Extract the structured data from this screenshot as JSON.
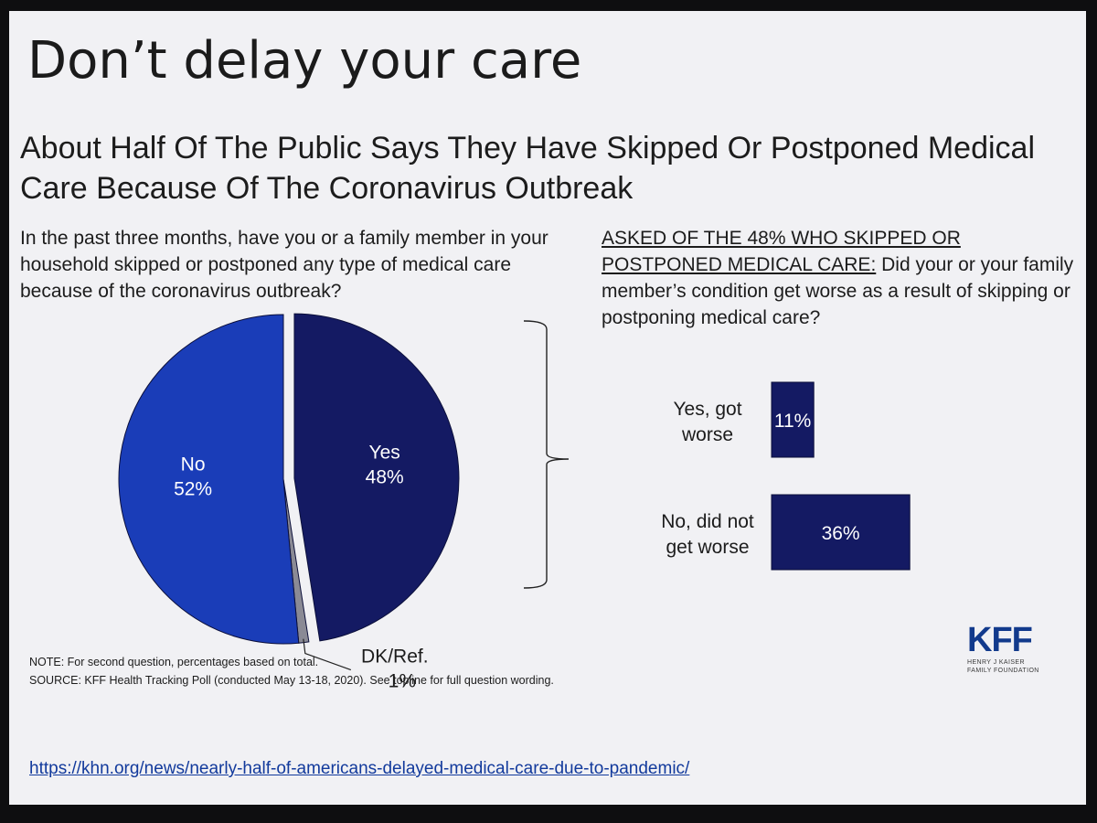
{
  "slide": {
    "title": "Don’t delay your care",
    "headline": "About Half Of The Public Says They Have Skipped Or Postponed Medical Care Because Of The Coronavirus Outbreak",
    "question_left": "In the past three months, have you or a family member in your household skipped or postponed any type of medical care because of the coronavirus outbreak?",
    "question_right_lead": "ASKED OF THE 48% WHO SKIPPED OR POSTPONED MEDICAL CARE:",
    "question_right_rest": " Did your or your family member’s condition get worse as a result of skipping or postponing medical care?",
    "note": "NOTE: For second question, percentages based on total.",
    "source": "SOURCE: KFF Health Tracking Poll (conducted May 13-18, 2020). See topline for full question wording.",
    "logo": {
      "letters": "KFF",
      "line1": "HENRY J KAISER",
      "line2": "FAMILY FOUNDATION"
    },
    "link": "https://khn.org/news/nearly-half-of-americans-delayed-medical-care-due-to-pandemic/"
  },
  "colors": {
    "yes": "#141a63",
    "no": "#1a3db8",
    "dk": "#8a8a95",
    "bars": "#141a63",
    "outline": "#0b0f3a"
  },
  "chart_data": [
    {
      "type": "pie",
      "slices": [
        {
          "label": "Yes",
          "value_label": "48%",
          "value": 48
        },
        {
          "label": "DK/Ref.",
          "value_label": "1%",
          "value": 1
        },
        {
          "label": "No",
          "value_label": "52%",
          "value": 52
        }
      ]
    },
    {
      "type": "bar",
      "orientation": "horizontal",
      "categories": [
        "Yes, got worse",
        "No, did not get worse"
      ],
      "category_lines": [
        [
          "Yes, got",
          "worse"
        ],
        [
          "No, did not",
          "get worse"
        ]
      ],
      "values": [
        11,
        36
      ],
      "value_labels": [
        "11%",
        "36%"
      ]
    }
  ]
}
